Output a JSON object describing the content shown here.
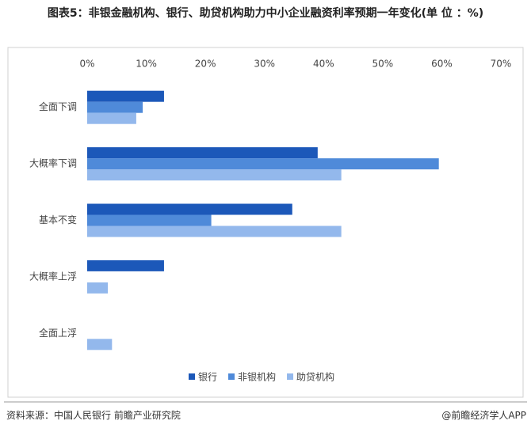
{
  "chart_data": {
    "type": "hbar",
    "title": "图表5：非银金融机构、银行、助贷机构助力中小企业融资利率预期一年变化(单 位 ：%)",
    "categories": [
      "全面下调",
      "大概率下调",
      "基本不变",
      "大概率上浮",
      "全面上浮"
    ],
    "series": [
      {
        "name": "银行",
        "color": "#1c58b9",
        "values": [
          13,
          39,
          34.7,
          13,
          0
        ]
      },
      {
        "name": "非银机构",
        "color": "#4f8ad9",
        "values": [
          9.4,
          59.5,
          21,
          0,
          0
        ]
      },
      {
        "name": "助贷机构",
        "color": "#93b8ec",
        "values": [
          8.3,
          43,
          43,
          3.5,
          4.2
        ]
      }
    ],
    "xlim": [
      0,
      70
    ],
    "xticks": [
      {
        "value": 0,
        "label": "0%"
      },
      {
        "value": 10,
        "label": "10%"
      },
      {
        "value": 20,
        "label": "20%"
      },
      {
        "value": 30,
        "label": "30%"
      },
      {
        "value": 40,
        "label": "40%"
      },
      {
        "value": 50,
        "label": "50%"
      },
      {
        "value": 60,
        "label": "60%"
      },
      {
        "value": 70,
        "label": "70%"
      }
    ],
    "source": "资料来源：中国人民银行 前瞻产业研究院",
    "credit": "@前瞻经济学人APP"
  }
}
